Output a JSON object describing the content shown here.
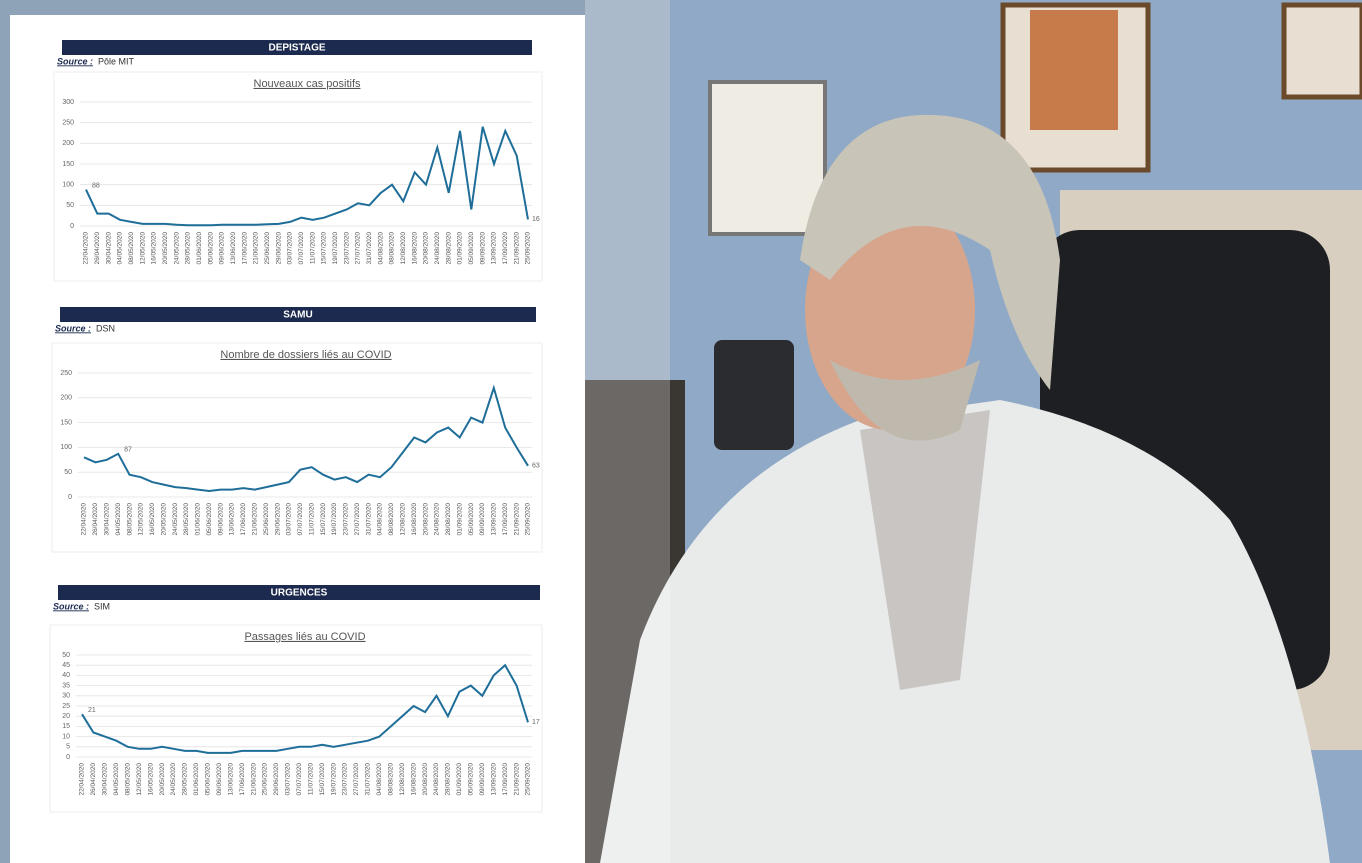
{
  "chart_data": [
    {
      "type": "line",
      "section": "DEPISTAGE",
      "source_label": "Source :",
      "source": "Pôle MIT",
      "title": "Nouveaux cas positifs",
      "color": "#1f6e99",
      "grid": true,
      "categories": [
        "22/04/2020",
        "26/04/2020",
        "30/04/2020",
        "04/05/2020",
        "08/05/2020",
        "12/05/2020",
        "16/05/2020",
        "20/05/2020",
        "24/05/2020",
        "28/05/2020",
        "01/06/2020",
        "05/06/2020",
        "09/06/2020",
        "13/06/2020",
        "17/06/2020",
        "21/06/2020",
        "25/06/2020",
        "29/06/2020",
        "03/07/2020",
        "07/07/2020",
        "11/07/2020",
        "15/07/2020",
        "19/07/2020",
        "23/07/2020",
        "27/07/2020",
        "31/07/2020",
        "04/08/2020",
        "08/08/2020",
        "12/08/2020",
        "16/08/2020",
        "20/08/2020",
        "24/08/2020",
        "28/08/2020",
        "01/09/2020",
        "05/09/2020",
        "09/09/2020",
        "13/09/2020",
        "17/09/2020",
        "21/09/2020",
        "25/09/2020"
      ],
      "values": [
        88,
        30,
        30,
        15,
        10,
        5,
        5,
        5,
        3,
        2,
        2,
        2,
        3,
        3,
        3,
        3,
        4,
        5,
        10,
        20,
        15,
        20,
        30,
        40,
        55,
        50,
        80,
        100,
        60,
        130,
        100,
        190,
        80,
        230,
        40,
        240,
        150,
        230,
        170,
        16
      ],
      "data_label_indices": [
        0,
        39
      ],
      "ylim": [
        0,
        300
      ],
      "yticks": [
        0,
        50,
        100,
        150,
        200,
        250,
        300
      ]
    },
    {
      "type": "line",
      "section": "SAMU",
      "source_label": "Source :",
      "source": "DSN",
      "title": "Nombre de dossiers liés au COVID",
      "color": "#1f6e99",
      "grid": true,
      "categories": [
        "22/04/2020",
        "26/04/2020",
        "30/04/2020",
        "04/05/2020",
        "08/05/2020",
        "12/05/2020",
        "16/05/2020",
        "20/05/2020",
        "24/05/2020",
        "28/05/2020",
        "01/06/2020",
        "05/06/2020",
        "09/06/2020",
        "13/06/2020",
        "17/06/2020",
        "21/06/2020",
        "25/06/2020",
        "29/06/2020",
        "03/07/2020",
        "07/07/2020",
        "11/07/2020",
        "15/07/2020",
        "19/07/2020",
        "23/07/2020",
        "27/07/2020",
        "31/07/2020",
        "04/08/2020",
        "08/08/2020",
        "12/08/2020",
        "16/08/2020",
        "20/08/2020",
        "24/08/2020",
        "28/08/2020",
        "01/09/2020",
        "05/09/2020",
        "09/09/2020",
        "13/09/2020",
        "17/09/2020",
        "21/09/2020",
        "25/09/2020"
      ],
      "values": [
        80,
        70,
        75,
        87,
        45,
        40,
        30,
        25,
        20,
        18,
        15,
        12,
        15,
        15,
        18,
        15,
        20,
        25,
        30,
        55,
        60,
        45,
        35,
        40,
        30,
        45,
        40,
        60,
        90,
        120,
        110,
        130,
        140,
        120,
        160,
        150,
        220,
        140,
        100,
        63
      ],
      "data_label_indices": [
        3,
        39
      ],
      "ylim": [
        0,
        250
      ],
      "yticks": [
        0,
        50,
        100,
        150,
        200,
        250
      ]
    },
    {
      "type": "line",
      "section": "URGENCES",
      "source_label": "Source :",
      "source": "SIM",
      "title": "Passages liés au COVID",
      "color": "#1f6e99",
      "grid": true,
      "categories": [
        "22/04/2020",
        "26/04/2020",
        "30/04/2020",
        "04/05/2020",
        "08/05/2020",
        "12/05/2020",
        "16/05/2020",
        "20/05/2020",
        "24/05/2020",
        "28/05/2020",
        "01/06/2020",
        "05/06/2020",
        "09/06/2020",
        "13/06/2020",
        "17/06/2020",
        "21/06/2020",
        "25/06/2020",
        "29/06/2020",
        "03/07/2020",
        "07/07/2020",
        "11/07/2020",
        "15/07/2020",
        "19/07/2020",
        "23/07/2020",
        "27/07/2020",
        "31/07/2020",
        "04/08/2020",
        "08/08/2020",
        "12/08/2020",
        "16/08/2020",
        "20/08/2020",
        "24/08/2020",
        "28/08/2020",
        "01/09/2020",
        "05/09/2020",
        "09/09/2020",
        "13/09/2020",
        "17/09/2020",
        "21/09/2020",
        "25/09/2020"
      ],
      "values": [
        21,
        12,
        10,
        8,
        5,
        4,
        4,
        5,
        4,
        3,
        3,
        2,
        2,
        2,
        3,
        3,
        3,
        3,
        4,
        5,
        5,
        6,
        5,
        6,
        7,
        8,
        10,
        15,
        20,
        25,
        22,
        30,
        20,
        32,
        35,
        30,
        40,
        45,
        35,
        17
      ],
      "data_label_indices": [
        0,
        39
      ],
      "ylim": [
        0,
        50
      ],
      "yticks": [
        0,
        5,
        10,
        15,
        20,
        25,
        30,
        35,
        40,
        45,
        50
      ]
    }
  ]
}
